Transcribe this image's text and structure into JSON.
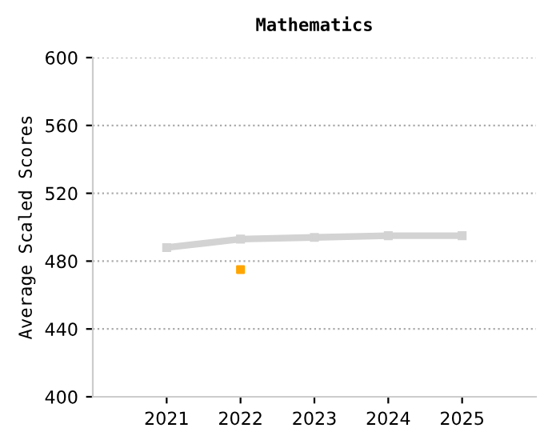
{
  "chart_data": {
    "type": "line",
    "title": "Mathematics",
    "ylabel": "Average Scaled Scores",
    "categories": [
      "2021",
      "2022",
      "2023",
      "2024",
      "2025"
    ],
    "series": [
      {
        "color": "#d3d3d3",
        "values": [
          488,
          493,
          494,
          495,
          495
        ],
        "marker": "square"
      },
      {
        "type": "scatter",
        "color": "#ffa500",
        "values": [
          null,
          475,
          null,
          null,
          null
        ],
        "marker": "square"
      }
    ],
    "ylim": [
      400,
      600
    ],
    "yticks": [
      400,
      440,
      480,
      520,
      560,
      600
    ],
    "grid": "y",
    "legend": false
  }
}
